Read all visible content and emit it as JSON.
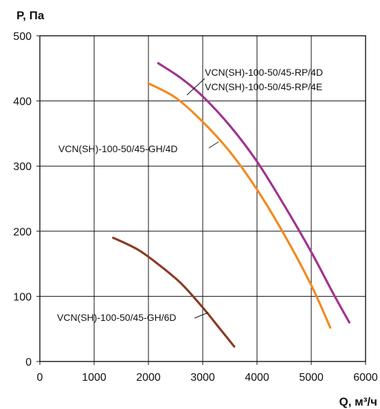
{
  "chart_data": {
    "type": "line",
    "ylabel": "P, Па",
    "xlabel": "Q, м³/ч",
    "xlim": [
      0,
      6000
    ],
    "ylim": [
      0,
      500
    ],
    "x_ticks": [
      0,
      1000,
      2000,
      3000,
      4000,
      5000,
      6000
    ],
    "y_ticks": [
      0,
      100,
      200,
      300,
      400,
      500
    ],
    "grid": true,
    "legend": "none",
    "series": [
      {
        "name": "VCN(SH)-100-50/45-RP/4D",
        "color": "#a0338f",
        "x": [
          2180,
          2600,
          3000,
          3500,
          4000,
          4500,
          5000,
          5400,
          5700
        ],
        "y": [
          458,
          435,
          407,
          362,
          307,
          240,
          168,
          105,
          60
        ]
      },
      {
        "name": "VCN(SH)-100-50/45-RP/4E",
        "color": "#a0338f",
        "x": [
          2180,
          2600,
          3000,
          3500,
          4000,
          4500,
          5000,
          5400,
          5700
        ],
        "y": [
          458,
          435,
          407,
          362,
          307,
          240,
          168,
          105,
          60
        ]
      },
      {
        "name": "VCN(SH)-100-50/45-GH/4D",
        "color": "#f28a1e",
        "x": [
          2000,
          2500,
          3000,
          3500,
          4000,
          4500,
          5000,
          5350
        ],
        "y": [
          427,
          405,
          368,
          322,
          264,
          195,
          117,
          52
        ]
      },
      {
        "name": "VCN(SH)-100-50/45-GH/6D",
        "color": "#8b3a24",
        "x": [
          1350,
          1800,
          2200,
          2600,
          3000,
          3300,
          3580
        ],
        "y": [
          190,
          172,
          148,
          120,
          83,
          52,
          23
        ]
      }
    ]
  }
}
